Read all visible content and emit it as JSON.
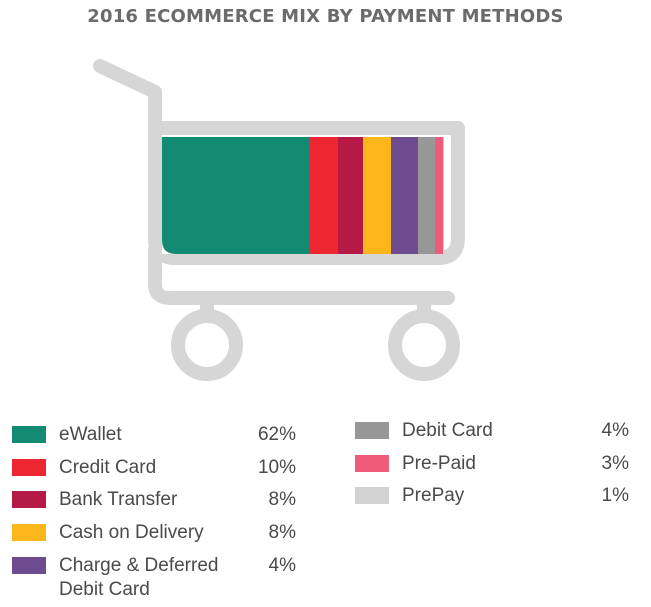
{
  "chart_data": {
    "type": "bar",
    "title": "2016 ECOMMERCE MIX BY PAYMENT METHODS",
    "categories": [
      "eWallet",
      "Credit Card",
      "Bank Transfer",
      "Cash on Delivery",
      "Charge & Deferred Debit Card",
      "Debit Card",
      "Pre-Paid",
      "PrePay"
    ],
    "values": [
      62,
      10,
      8,
      8,
      4,
      4,
      3,
      1
    ],
    "value_labels": [
      "62%",
      "10%",
      "8%",
      "8%",
      "4%",
      "4%",
      "3%",
      "1%"
    ],
    "colors": [
      "#138a72",
      "#ee2631",
      "#b41a45",
      "#fbb61a",
      "#6e4a8e",
      "#979797",
      "#ef5b7a",
      "#d2d2d2"
    ],
    "legend": [
      {
        "label_lines": [
          "eWallet"
        ],
        "value": "62%",
        "color": "#138a72"
      },
      {
        "label_lines": [
          "Credit Card"
        ],
        "value": "10%",
        "color": "#ee2631"
      },
      {
        "label_lines": [
          "Bank Transfer"
        ],
        "value": "8%",
        "color": "#b41a45"
      },
      {
        "label_lines": [
          "Cash on Delivery"
        ],
        "value": "8%",
        "color": "#fbb61a"
      },
      {
        "label_lines": [
          "Charge & Deferred",
          "Debit Card"
        ],
        "value": "4%",
        "color": "#6e4a8e"
      },
      {
        "label_lines": [
          "Debit Card"
        ],
        "value": "4%",
        "color": "#979797"
      },
      {
        "label_lines": [
          "Pre-Paid"
        ],
        "value": "3%",
        "color": "#ef5b7a"
      },
      {
        "label_lines": [
          "PrePay"
        ],
        "value": "1%",
        "color": "#d2d2d2"
      }
    ],
    "stacked": true,
    "legend_placement": "bottom",
    "grid": false
  },
  "cart_color": "#d6d6d6"
}
